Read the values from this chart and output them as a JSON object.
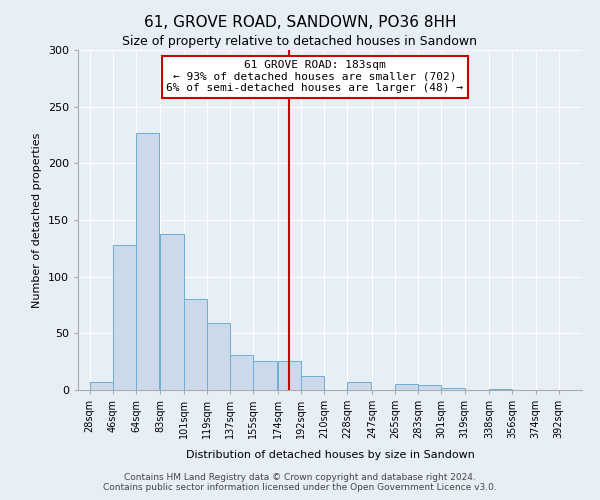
{
  "title": "61, GROVE ROAD, SANDOWN, PO36 8HH",
  "subtitle": "Size of property relative to detached houses in Sandown",
  "xlabel": "Distribution of detached houses by size in Sandown",
  "ylabel": "Number of detached properties",
  "bar_labels": [
    "28sqm",
    "46sqm",
    "64sqm",
    "83sqm",
    "101sqm",
    "119sqm",
    "137sqm",
    "155sqm",
    "174sqm",
    "192sqm",
    "210sqm",
    "228sqm",
    "247sqm",
    "265sqm",
    "283sqm",
    "301sqm",
    "319sqm",
    "338sqm",
    "356sqm",
    "374sqm",
    "392sqm"
  ],
  "bar_values": [
    7,
    128,
    227,
    138,
    80,
    59,
    31,
    26,
    26,
    12,
    0,
    7,
    0,
    5,
    4,
    2,
    0,
    1,
    0,
    0,
    0
  ],
  "bar_color": "#ccd9ea",
  "bar_edge_color": "#6baed6",
  "bin_left_edges": [
    28,
    46,
    64,
    83,
    101,
    119,
    137,
    155,
    174,
    192,
    210,
    228,
    247,
    265,
    283,
    301,
    319,
    338,
    356,
    374,
    392
  ],
  "bin_width": 18,
  "vline_x_index": 8.72,
  "annotation_title": "61 GROVE ROAD: 183sqm",
  "annotation_line1": "← 93% of detached houses are smaller (702)",
  "annotation_line2": "6% of semi-detached houses are larger (48) →",
  "annotation_box_color": "#ffffff",
  "annotation_box_edge": "#cc0000",
  "vline_color": "#cc0000",
  "footer1": "Contains HM Land Registry data © Crown copyright and database right 2024.",
  "footer2": "Contains public sector information licensed under the Open Government Licence v3.0.",
  "ylim": [
    0,
    300
  ],
  "xlim_left": 19,
  "xlim_right": 410,
  "bg_color": "#e8eef5",
  "title_fontsize": 11,
  "subtitle_fontsize": 9,
  "ylabel_fontsize": 8,
  "xlabel_fontsize": 8,
  "tick_fontsize": 7,
  "footer_fontsize": 6.5
}
